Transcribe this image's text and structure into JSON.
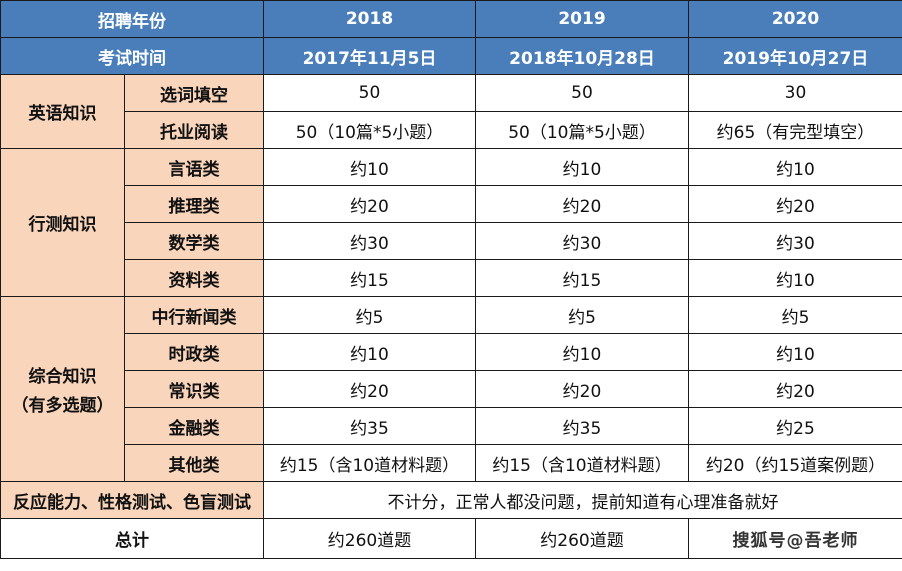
{
  "colors": {
    "header_bg": "#4A7EBB",
    "category_bg": "#F9D5BC"
  },
  "header": {
    "row1": {
      "label": "招聘年份",
      "years": [
        "2018",
        "2019",
        "2020"
      ]
    },
    "row2": {
      "label": "考试时间",
      "dates": [
        "2017年11月5日",
        "2018年10月28日",
        "2019年10月27日"
      ]
    }
  },
  "groups": [
    {
      "name": "英语知识",
      "rows": [
        {
          "item": "选词填空",
          "values": [
            "50",
            "50",
            "30"
          ]
        },
        {
          "item": "托业阅读",
          "values": [
            "50（10篇*5小题）",
            "50（10篇*5小题）",
            "约65（有完型填空）"
          ]
        }
      ]
    },
    {
      "name": "行测知识",
      "rows": [
        {
          "item": "言语类",
          "values": [
            "约10",
            "约10",
            "约10"
          ]
        },
        {
          "item": "推理类",
          "values": [
            "约20",
            "约20",
            "约20"
          ]
        },
        {
          "item": "数学类",
          "values": [
            "约30",
            "约30",
            "约30"
          ]
        },
        {
          "item": "资料类",
          "values": [
            "约15",
            "约15",
            "约10"
          ]
        }
      ]
    },
    {
      "name": "综合知识",
      "name2": "（有多选题）",
      "rows": [
        {
          "item": "中行新闻类",
          "values": [
            "约5",
            "约5",
            "约5"
          ]
        },
        {
          "item": "时政类",
          "values": [
            "约10",
            "约10",
            "约10"
          ]
        },
        {
          "item": "常识类",
          "values": [
            "约20",
            "约20",
            "约20"
          ]
        },
        {
          "item": "金融类",
          "values": [
            "约35",
            "约35",
            "约25"
          ]
        },
        {
          "item": "其他类",
          "values": [
            "约15（含10道材料题）",
            "约15（含10道材料题）",
            "约20（约15道案例题）"
          ]
        }
      ]
    }
  ],
  "extra": {
    "label": "反应能力、性格测试、色盲测试",
    "value": "不计分，正常人都没问题，提前知道有心理准备就好"
  },
  "total": {
    "label": "总计",
    "values": [
      "约260道题",
      "约260道题"
    ]
  },
  "watermark": "搜狐号@吾老师"
}
